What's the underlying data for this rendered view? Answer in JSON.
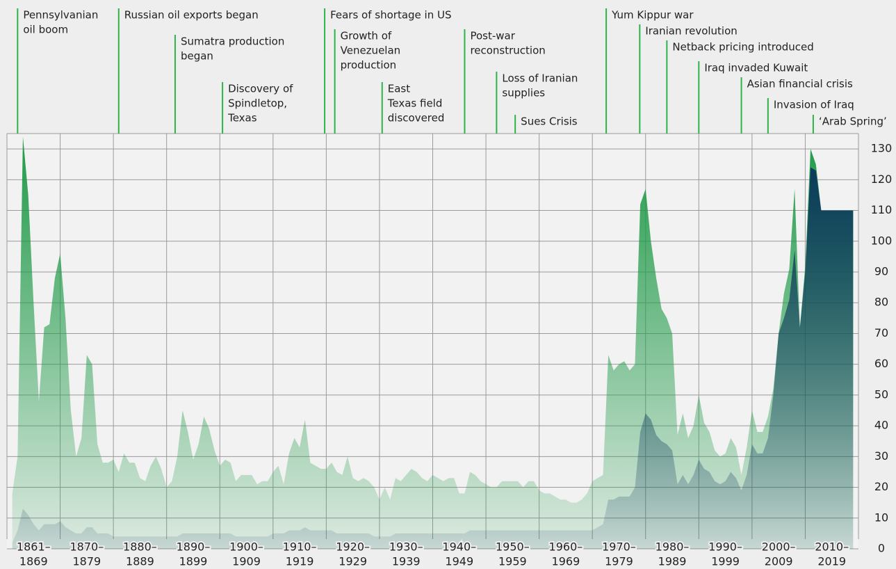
{
  "chart_data": {
    "type": "area",
    "x": [
      1861,
      1862,
      1863,
      1864,
      1865,
      1866,
      1867,
      1868,
      1869,
      1870,
      1871,
      1872,
      1873,
      1874,
      1875,
      1876,
      1877,
      1878,
      1879,
      1880,
      1881,
      1882,
      1883,
      1884,
      1885,
      1886,
      1887,
      1888,
      1889,
      1890,
      1891,
      1892,
      1893,
      1894,
      1895,
      1896,
      1897,
      1898,
      1899,
      1900,
      1901,
      1902,
      1903,
      1904,
      1905,
      1906,
      1907,
      1908,
      1909,
      1910,
      1911,
      1912,
      1913,
      1914,
      1915,
      1916,
      1917,
      1918,
      1919,
      1920,
      1921,
      1922,
      1923,
      1924,
      1925,
      1926,
      1927,
      1928,
      1929,
      1930,
      1931,
      1932,
      1933,
      1934,
      1935,
      1936,
      1937,
      1938,
      1939,
      1940,
      1941,
      1942,
      1943,
      1944,
      1945,
      1946,
      1947,
      1948,
      1949,
      1950,
      1951,
      1952,
      1953,
      1954,
      1955,
      1956,
      1957,
      1958,
      1959,
      1960,
      1961,
      1962,
      1963,
      1964,
      1965,
      1966,
      1967,
      1968,
      1969,
      1970,
      1971,
      1972,
      1973,
      1974,
      1975,
      1976,
      1977,
      1978,
      1979,
      1980,
      1981,
      1982,
      1983,
      1984,
      1985,
      1986,
      1987,
      1988,
      1989,
      1990,
      1991,
      1992,
      1993,
      1994,
      1995,
      1996,
      1997,
      1998,
      1999,
      2000,
      2001,
      2002,
      2003,
      2004,
      2005,
      2006,
      2007,
      2008,
      2009,
      2010,
      2011,
      2012,
      2013,
      2014,
      2015,
      2016,
      2017,
      2018,
      2019
    ],
    "series": [
      {
        "color": "#1f9a48",
        "values": [
          18,
          30,
          134,
          115,
          80,
          48,
          72,
          73,
          88,
          96,
          75,
          45,
          30,
          36,
          63,
          60,
          34,
          28,
          28,
          29,
          25,
          31,
          28,
          28,
          23,
          22,
          27,
          30,
          26,
          20,
          22,
          30,
          45,
          38,
          29,
          34,
          43,
          39,
          32,
          27,
          29,
          28,
          22,
          24,
          24,
          24,
          21,
          22,
          22,
          25,
          27,
          21,
          31,
          36,
          33,
          42,
          28,
          27,
          26,
          26,
          28,
          25,
          24,
          30,
          23,
          22,
          23,
          22,
          20,
          16,
          20,
          16,
          23,
          22,
          24,
          26,
          25,
          23,
          22,
          24,
          23,
          22,
          23,
          23,
          18,
          18,
          25,
          24,
          22,
          21,
          20,
          20,
          22,
          22,
          22,
          22,
          20,
          22,
          22,
          19,
          18,
          18,
          17,
          16,
          16,
          15,
          15,
          16,
          18,
          22,
          23,
          24,
          63,
          58,
          60,
          61,
          58,
          60,
          112,
          117,
          100,
          88,
          78,
          75,
          70,
          37,
          44,
          36,
          40,
          50,
          41,
          38,
          32,
          30,
          31,
          36,
          33,
          24,
          33,
          45,
          38,
          38,
          43,
          52,
          70,
          83,
          91,
          117,
          72,
          92,
          130,
          125,
          110,
          110,
          110,
          110,
          110,
          110,
          110
        ]
      },
      {
        "color": "#0d3b5c",
        "values": [
          2,
          6,
          13,
          11,
          8,
          6,
          8,
          8,
          8,
          9,
          7,
          6,
          5,
          5,
          7,
          7,
          5,
          5,
          5,
          4,
          4,
          4,
          4,
          4,
          4,
          4,
          4,
          4,
          4,
          4,
          4,
          4,
          5,
          5,
          5,
          5,
          5,
          5,
          5,
          5,
          5,
          5,
          4,
          4,
          4,
          4,
          4,
          4,
          4,
          5,
          5,
          5,
          6,
          6,
          6,
          7,
          6,
          6,
          6,
          6,
          6,
          5,
          5,
          5,
          5,
          5,
          5,
          5,
          4,
          4,
          4,
          4,
          5,
          5,
          5,
          5,
          5,
          5,
          5,
          5,
          5,
          5,
          5,
          5,
          5,
          5,
          6,
          6,
          6,
          6,
          6,
          6,
          6,
          6,
          6,
          6,
          6,
          6,
          6,
          6,
          6,
          6,
          6,
          6,
          6,
          6,
          6,
          6,
          6,
          6,
          7,
          8,
          16,
          16,
          17,
          17,
          17,
          20,
          38,
          44,
          42,
          37,
          35,
          34,
          32,
          21,
          24,
          21,
          24,
          29,
          26,
          25,
          22,
          21,
          22,
          25,
          23,
          19,
          24,
          34,
          31,
          31,
          36,
          50,
          70,
          75,
          81,
          97,
          72,
          90,
          124,
          123,
          110,
          110,
          110,
          110,
          110,
          110,
          110
        ]
      }
    ],
    "xlim": [
      1860,
      2020
    ],
    "xgrid": [
      1860,
      1870,
      1880,
      1890,
      1900,
      1910,
      1920,
      1930,
      1940,
      1950,
      1960,
      1970,
      1980,
      1990,
      2000,
      2010,
      2020
    ],
    "xticks": [
      {
        "value": 1865,
        "label": [
          "1861–",
          "1869"
        ]
      },
      {
        "value": 1875,
        "label": [
          "1870–",
          "1879"
        ]
      },
      {
        "value": 1885,
        "label": [
          "1880–",
          "1889"
        ]
      },
      {
        "value": 1895,
        "label": [
          "1890–",
          "1899"
        ]
      },
      {
        "value": 1905,
        "label": [
          "1900–",
          "1909"
        ]
      },
      {
        "value": 1915,
        "label": [
          "1910–",
          "1919"
        ]
      },
      {
        "value": 1925,
        "label": [
          "1920–",
          "1929"
        ]
      },
      {
        "value": 1935,
        "label": [
          "1930–",
          "1939"
        ]
      },
      {
        "value": 1945,
        "label": [
          "1940–",
          "1949"
        ]
      },
      {
        "value": 1955,
        "label": [
          "1950–",
          "1959"
        ]
      },
      {
        "value": 1965,
        "label": [
          "1960–",
          "1969"
        ]
      },
      {
        "value": 1975,
        "label": [
          "1970–",
          "1979"
        ]
      },
      {
        "value": 1985,
        "label": [
          "1980–",
          "1989"
        ]
      },
      {
        "value": 1995,
        "label": [
          "1990–",
          "1999"
        ]
      },
      {
        "value": 2005,
        "label": [
          "2000–",
          "2009"
        ]
      },
      {
        "value": 2015,
        "label": [
          "2010–",
          "2019"
        ]
      }
    ],
    "ylim": [
      0,
      135
    ],
    "yticks": [
      0,
      10,
      20,
      30,
      40,
      50,
      60,
      70,
      80,
      90,
      100,
      110,
      120,
      130
    ],
    "grid": true,
    "annotations": [
      {
        "x": 1862,
        "label": [
          "Pennsylvanian",
          "oil boom"
        ]
      },
      {
        "x": 1881,
        "label": [
          "Russian oil exports began"
        ]
      },
      {
        "x": 1891.6,
        "label": [
          "Sumatra production",
          "began"
        ]
      },
      {
        "x": 1900.5,
        "label": [
          "Discovery of",
          "Spindletop,",
          "Texas"
        ]
      },
      {
        "x": 1919.7,
        "label": [
          "Fears of shortage in US"
        ]
      },
      {
        "x": 1921.6,
        "label": [
          "Growth of",
          "Venezuelan",
          "production"
        ]
      },
      {
        "x": 1930.5,
        "label": [
          "East",
          "Texas field",
          "discovered"
        ]
      },
      {
        "x": 1946,
        "label": [
          "Post-war",
          "reconstruction"
        ]
      },
      {
        "x": 1952,
        "label": [
          "Loss of Iranian",
          "supplies"
        ]
      },
      {
        "x": 1955.5,
        "label": [
          "Sues Crisis"
        ]
      },
      {
        "x": 1972.6,
        "label": [
          "Yum Kippur war"
        ]
      },
      {
        "x": 1978.9,
        "label": [
          "Iranian revolution"
        ]
      },
      {
        "x": 1984,
        "label": [
          "Netback pricing introduced"
        ]
      },
      {
        "x": 1990,
        "label": [
          "Iraq invaded Kuwait"
        ]
      },
      {
        "x": 1998,
        "label": [
          "Asian financial crisis"
        ]
      },
      {
        "x": 2003,
        "label": [
          "Invasion of Iraq"
        ]
      },
      {
        "x": 2011.5,
        "label": [
          "‘Arab Spring’"
        ]
      }
    ]
  }
}
